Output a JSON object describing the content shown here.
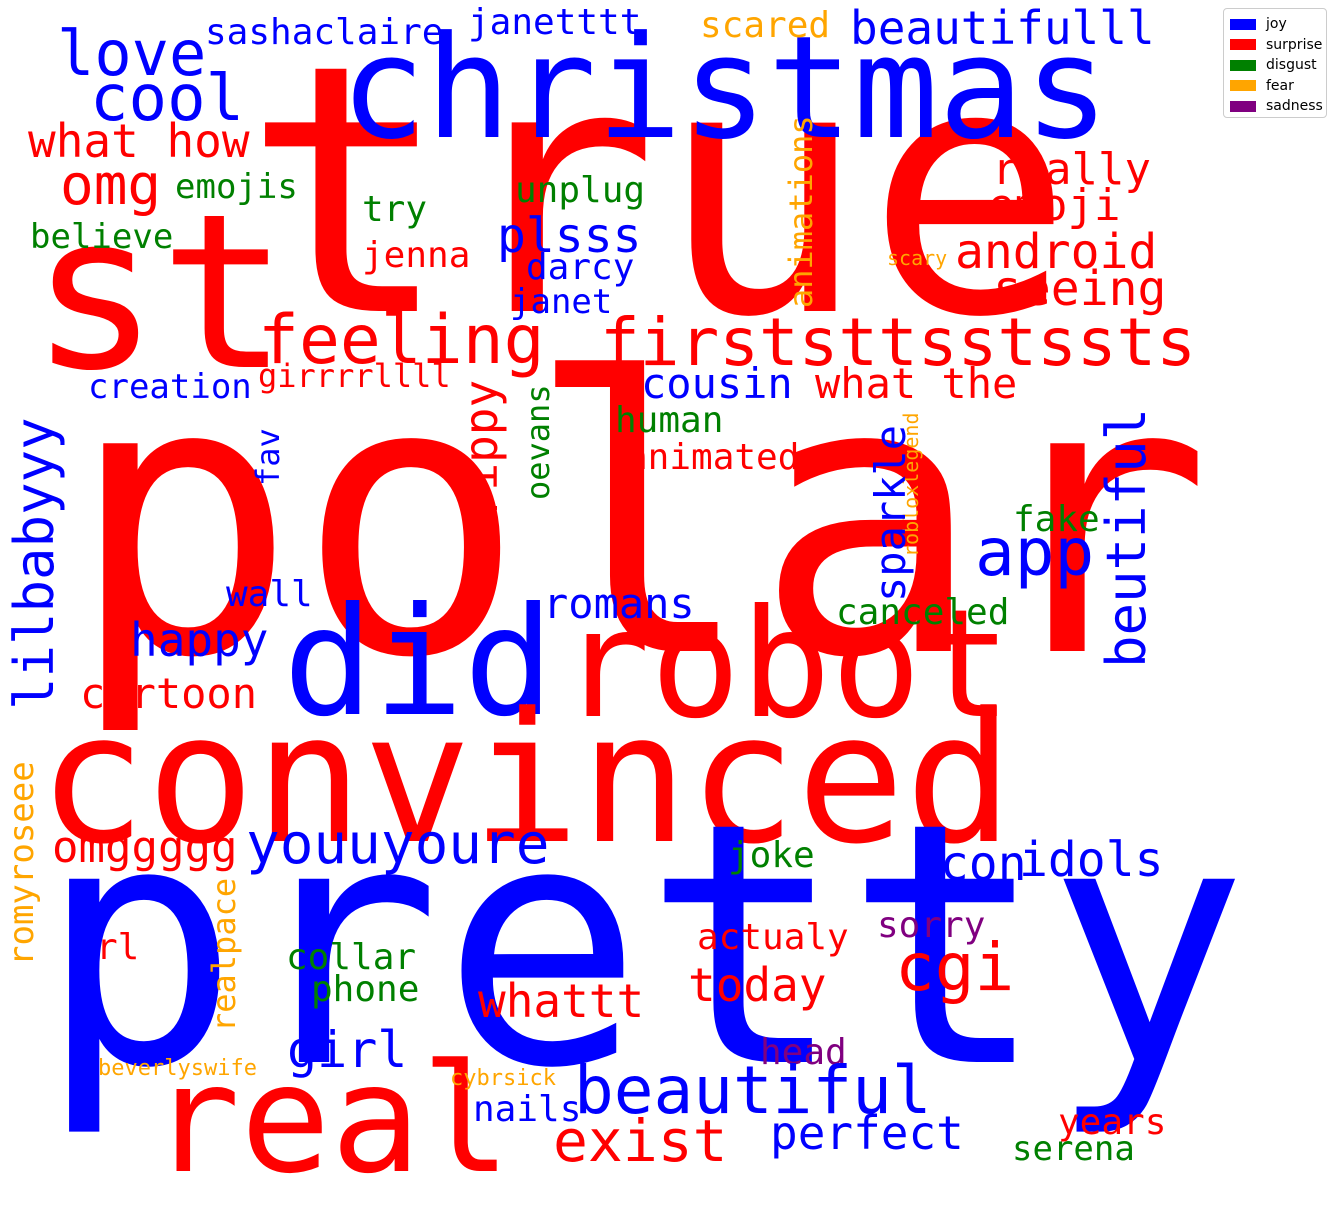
{
  "legend": {
    "items": [
      {
        "label": "joy",
        "color": "#0000ff"
      },
      {
        "label": "surprise",
        "color": "#ff0000"
      },
      {
        "label": "disgust",
        "color": "#008000"
      },
      {
        "label": "fear",
        "color": "#ffa500"
      },
      {
        "label": "sadness",
        "color": "#800080"
      }
    ]
  },
  "words": {
    "true": "true",
    "christmas": "christmas",
    "st": "st",
    "polar": "polar",
    "did": "did",
    "robot": "robot",
    "convinced": "convinced",
    "pretty": "pretty",
    "real": "real",
    "love": "love",
    "cool": "cool",
    "sashaclaire": "sashaclaire",
    "janetttt": "janetttt",
    "scared": "scared",
    "beautifulll": "beautifulll",
    "what_how": "what how",
    "omg": "omg",
    "emojis": "emojis",
    "believe": "believe",
    "try": "try",
    "unplug": "unplug",
    "really": "really",
    "emoji": "emoji",
    "plsss": "plsss",
    "jenna": "jenna",
    "darcy": "darcy",
    "android": "android",
    "scary": "scary",
    "seeing": "seeing",
    "animations": "animations",
    "janet": "janet",
    "feeling": "feeling",
    "firststtsstssts": "firststtsstssts",
    "cousin": "cousin",
    "what_the": "what the",
    "creation": "creation",
    "girrrrllll": "girrrrllll",
    "lilbabyyy": "lilbabyyy",
    "trippy": "trippy",
    "human": "human",
    "animated": "animated",
    "oevans": "oevans",
    "robloxlegend": "robloxlegend",
    "fav": "fav",
    "sparkle": "sparkle",
    "beutiful": "beutiful",
    "app": "app",
    "fake": "fake",
    "wall": "wall",
    "romans": "romans",
    "canceled": "canceled",
    "happy": "happy",
    "cartoon": "cartoon",
    "omggggg": "omggggg",
    "youuyoure": "youuyoure",
    "joke": "joke",
    "icon": "icon",
    "idols": "idols",
    "romyroseee": "romyroseee",
    "rl": "rl",
    "realpace": "realpace",
    "collar": "collar",
    "phone": "phone",
    "actualy": "actualy",
    "sorry": "sorry",
    "cgi": "cgi",
    "today": "today",
    "whattt": "whattt",
    "girl": "girl",
    "head": "head",
    "beverlyswife": "beverlyswife",
    "cybrsick": "cybrsick",
    "beautiful": "beautiful",
    "nails": "nails",
    "perfect": "perfect",
    "exist": "exist",
    "years": "years",
    "serena": "serena"
  }
}
